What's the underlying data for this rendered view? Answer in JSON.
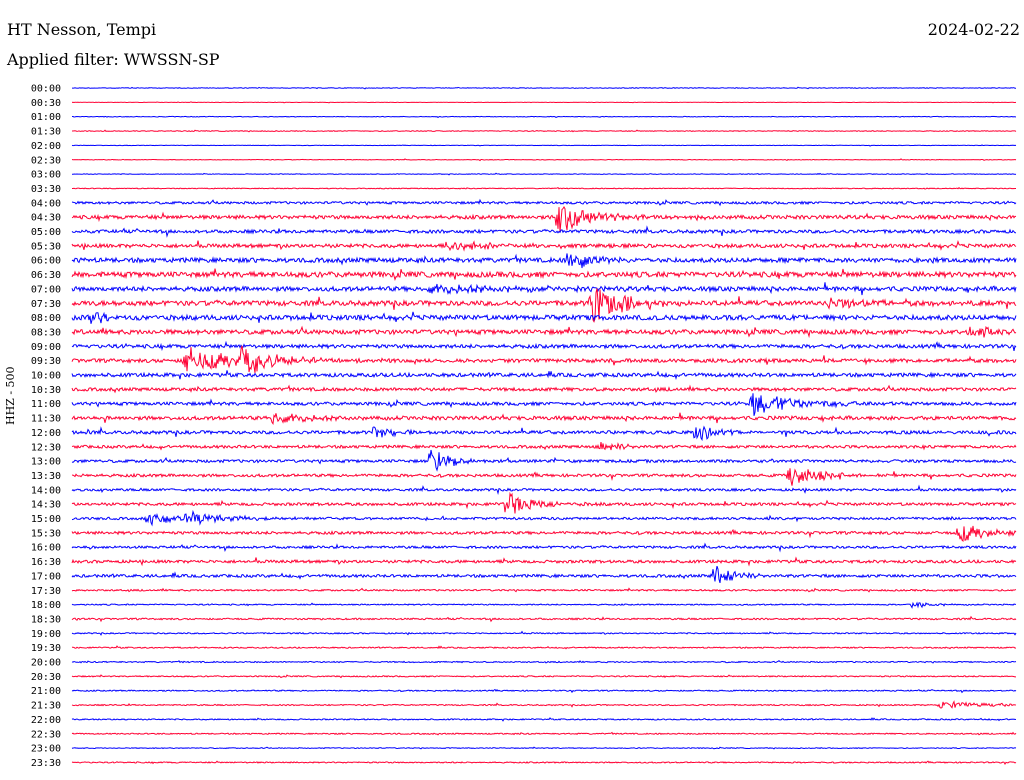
{
  "header": {
    "station": "HT Nesson, Tempi",
    "date": "2024-02-22",
    "filter_label": "Applied filter: WWSSN-SP"
  },
  "chart_data": {
    "type": "line",
    "title": "HT Nesson, Tempi",
    "ylabel": "HHZ - 500",
    "row_labels": [
      "00:00",
      "00:30",
      "01:00",
      "01:30",
      "02:00",
      "02:30",
      "03:00",
      "03:30",
      "04:00",
      "04:30",
      "05:00",
      "05:30",
      "06:00",
      "06:30",
      "07:00",
      "07:30",
      "08:00",
      "08:30",
      "09:00",
      "09:30",
      "10:00",
      "10:30",
      "11:00",
      "11:30",
      "12:00",
      "12:30",
      "13:00",
      "13:30",
      "14:00",
      "14:30",
      "15:00",
      "15:30",
      "16:00",
      "16:30",
      "17:00",
      "17:30",
      "18:00",
      "18:30",
      "19:00",
      "19:30",
      "20:00",
      "20:30",
      "21:00",
      "21:30",
      "22:00",
      "22:30",
      "23:00",
      "23:30"
    ],
    "colors": [
      "#0000ff",
      "#ff0033"
    ],
    "noise_levels": [
      0.3,
      0.2,
      0.3,
      0.4,
      0.2,
      0.3,
      0.3,
      0.4,
      1.2,
      1.8,
      1.6,
      1.8,
      2.2,
      2.6,
      2.2,
      2.4,
      2.4,
      2.2,
      1.8,
      1.8,
      1.8,
      1.6,
      1.6,
      1.8,
      1.6,
      1.4,
      1.4,
      1.4,
      1.2,
      1.4,
      1.2,
      1.4,
      1.2,
      1.4,
      1.4,
      0.8,
      0.6,
      0.8,
      0.6,
      0.6,
      0.6,
      0.6,
      0.6,
      0.6,
      0.6,
      0.6,
      0.4,
      0.6
    ],
    "events": [
      {
        "row": 9,
        "x": 0.515,
        "amp": 18,
        "dur": 0.03
      },
      {
        "row": 12,
        "x": 0.527,
        "amp": 16,
        "dur": 0.02
      },
      {
        "row": 15,
        "x": 0.55,
        "amp": 22,
        "dur": 0.03
      },
      {
        "row": 16,
        "x": 0.02,
        "amp": 6,
        "dur": 0.02
      },
      {
        "row": 15,
        "x": 0.8,
        "amp": 6,
        "dur": 0.04
      },
      {
        "row": 17,
        "x": 0.95,
        "amp": 6,
        "dur": 0.03
      },
      {
        "row": 19,
        "x": 0.12,
        "amp": 14,
        "dur": 0.05
      },
      {
        "row": 19,
        "x": 0.18,
        "amp": 18,
        "dur": 0.03
      },
      {
        "row": 22,
        "x": 0.72,
        "amp": 12,
        "dur": 0.05
      },
      {
        "row": 23,
        "x": 0.21,
        "amp": 6,
        "dur": 0.04
      },
      {
        "row": 24,
        "x": 0.32,
        "amp": 6,
        "dur": 0.02
      },
      {
        "row": 24,
        "x": 0.66,
        "amp": 10,
        "dur": 0.02
      },
      {
        "row": 25,
        "x": 0.56,
        "amp": 6,
        "dur": 0.02
      },
      {
        "row": 26,
        "x": 0.38,
        "amp": 14,
        "dur": 0.02
      },
      {
        "row": 27,
        "x": 0.76,
        "amp": 12,
        "dur": 0.03
      },
      {
        "row": 29,
        "x": 0.46,
        "amp": 12,
        "dur": 0.03
      },
      {
        "row": 30,
        "x": 0.08,
        "amp": 6,
        "dur": 0.04
      },
      {
        "row": 30,
        "x": 0.12,
        "amp": 6,
        "dur": 0.04
      },
      {
        "row": 31,
        "x": 0.94,
        "amp": 10,
        "dur": 0.03
      },
      {
        "row": 34,
        "x": 0.68,
        "amp": 12,
        "dur": 0.02
      },
      {
        "row": 43,
        "x": 0.92,
        "amp": 4,
        "dur": 0.05
      },
      {
        "row": 11,
        "x": 0.4,
        "amp": 5,
        "dur": 0.05
      },
      {
        "row": 14,
        "x": 0.38,
        "amp": 4,
        "dur": 0.1
      },
      {
        "row": 36,
        "x": 0.89,
        "amp": 4,
        "dur": 0.02
      }
    ]
  }
}
